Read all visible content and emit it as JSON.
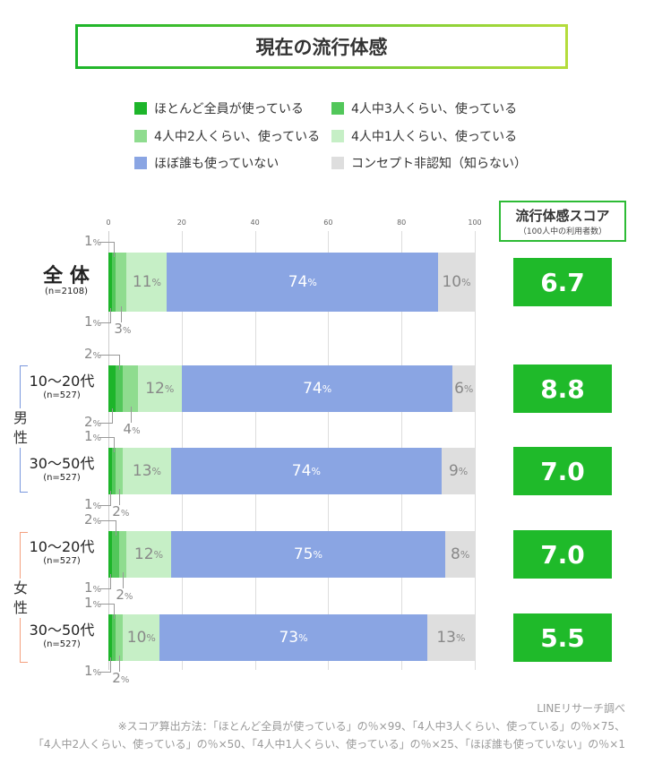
{
  "title": "現在の流行体感",
  "legend": [
    {
      "label": "ほとんど全員が使っている",
      "color": "#1db52a"
    },
    {
      "label": "4人中3人くらい、使っている",
      "color": "#52c75a"
    },
    {
      "label": "4人中2人くらい、使っている",
      "color": "#8fdc8f"
    },
    {
      "label": "4人中1人くらい、使っている",
      "color": "#c6efc6"
    },
    {
      "label": "ほぼ誰も使っていない",
      "color": "#8aa5e3"
    },
    {
      "label": "コンセプト非認知（知らない）",
      "color": "#dedede"
    }
  ],
  "score_header": {
    "title": "流行体感スコア",
    "subtitle": "（100人中の利用者数）"
  },
  "genders": {
    "male": "男性",
    "female": "女性"
  },
  "chart_data": {
    "type": "bar",
    "orientation": "horizontal-stacked",
    "xlim": [
      0,
      100
    ],
    "x_ticks": [
      "0",
      "20",
      "40",
      "60",
      "80",
      "100"
    ],
    "unit": "%",
    "categories": [
      {
        "label": "全 体",
        "n": "(n=2108)",
        "score": "6.7"
      },
      {
        "label": "10〜20代",
        "n": "(n=527)",
        "group": "男性",
        "score": "8.8"
      },
      {
        "label": "30〜50代",
        "n": "(n=527)",
        "group": "男性",
        "score": "7.0"
      },
      {
        "label": "10〜20代",
        "n": "(n=527)",
        "group": "女性",
        "score": "7.0"
      },
      {
        "label": "30〜50代",
        "n": "(n=527)",
        "group": "女性",
        "score": "5.5"
      }
    ],
    "series": [
      {
        "name": "ほとんど全員が使っている",
        "values": [
          1,
          2,
          1,
          1,
          1
        ]
      },
      {
        "name": "4人中3人くらい、使っている",
        "values": [
          1,
          2,
          1,
          2,
          1
        ]
      },
      {
        "name": "4人中2人くらい、使っている",
        "values": [
          3,
          4,
          2,
          2,
          2
        ]
      },
      {
        "name": "4人中1人くらい、使っている",
        "values": [
          11,
          12,
          13,
          12,
          10
        ]
      },
      {
        "name": "ほぼ誰も使っていない",
        "values": [
          74,
          74,
          74,
          75,
          73
        ]
      },
      {
        "name": "コンセプト非認知（知らない）",
        "values": [
          10,
          6,
          9,
          8,
          13
        ]
      }
    ]
  },
  "footer": {
    "source": "LINEリサーチ調べ",
    "note1": "※スコア算出方法：「ほとんど全員が使っている」の％×99、「4人中3人くらい、使っている」の％×75、",
    "note2": "「4人中2人くらい、使っている」の％×50、「4人中1人くらい、使っている」の％×25、「ほぼ誰も使っていない」の％×1"
  }
}
